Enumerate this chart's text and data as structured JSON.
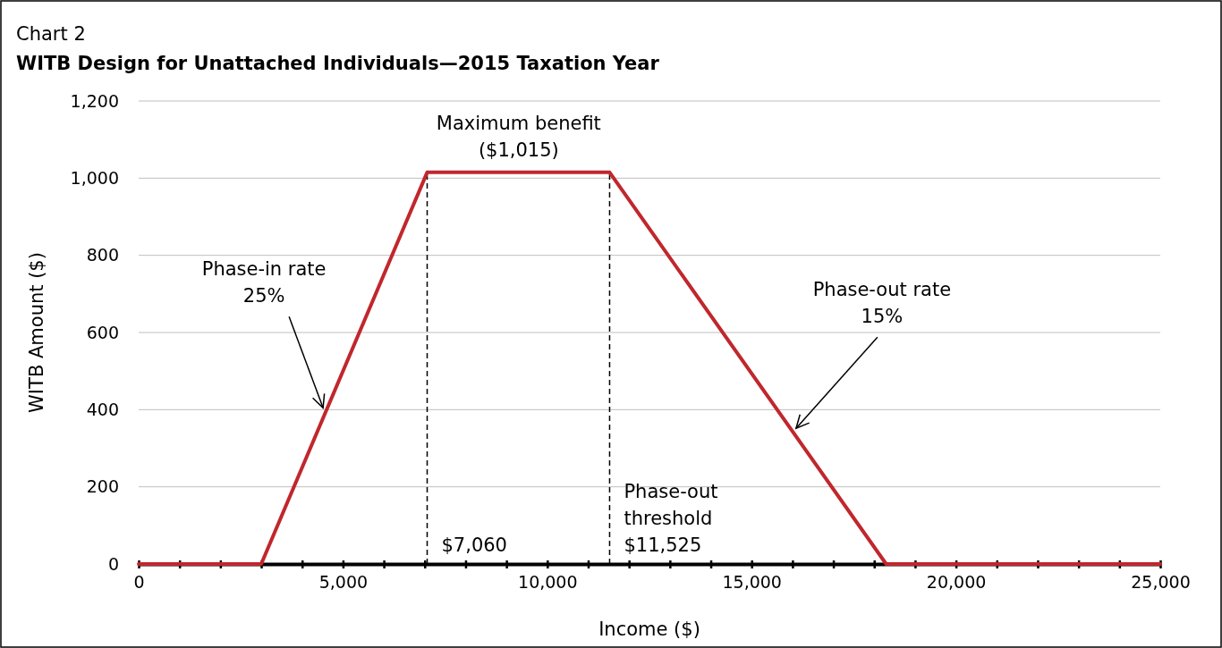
{
  "chart_data": {
    "type": "line",
    "subtitle": "Chart 2",
    "title": "WITB Design for Unattached Individuals—2015 Taxation Year",
    "xlabel": "Income ($)",
    "ylabel": "WITB Amount ($)",
    "x": [
      0,
      3000,
      7060,
      11525,
      18292,
      25000
    ],
    "series": [
      {
        "color": "#c0272d",
        "values": [
          0,
          0,
          1015,
          1015,
          0,
          0
        ]
      }
    ],
    "xlim": [
      0,
      25000
    ],
    "xticks": [
      0,
      {
        "value": 1000,
        "label": null
      },
      {
        "value": 2000,
        "label": null
      },
      {
        "value": 3000,
        "label": null
      },
      {
        "value": 4000,
        "label": null
      },
      {
        "value": 5000,
        "label": "5,000"
      },
      {
        "value": 6000,
        "label": null
      },
      {
        "value": 7000,
        "label": null
      },
      {
        "value": 8000,
        "label": null
      },
      {
        "value": 9000,
        "label": null
      },
      {
        "value": 10000,
        "label": "10,000"
      },
      {
        "value": 11000,
        "label": null
      },
      {
        "value": 12000,
        "label": null
      },
      {
        "value": 13000,
        "label": null
      },
      {
        "value": 14000,
        "label": null
      },
      {
        "value": 15000,
        "label": "15,000"
      },
      {
        "value": 16000,
        "label": null
      },
      {
        "value": 17000,
        "label": null
      },
      {
        "value": 18000,
        "label": null
      },
      {
        "value": 19000,
        "label": null
      },
      {
        "value": 20000,
        "label": "20,000"
      },
      {
        "value": 21000,
        "label": null
      },
      {
        "value": 22000,
        "label": null
      },
      {
        "value": 23000,
        "label": null
      },
      {
        "value": 24000,
        "label": null
      },
      {
        "value": 25000,
        "label": "25,000"
      }
    ],
    "ylim": [
      0,
      1200
    ],
    "yticks": [
      0,
      200,
      400,
      600,
      800,
      {
        "value": 1000,
        "label": "1,000"
      },
      {
        "value": 1200,
        "label": "1,200"
      }
    ],
    "grid": "y",
    "marker": "none",
    "line_style": "solid",
    "ref_lines": [
      {
        "axis": "x",
        "value": 7060,
        "label": "$7,060",
        "line_style": "dashed",
        "color": "#000000"
      },
      {
        "axis": "x",
        "value": 11525,
        "label": "Phase-out\nthreshold\n$11,525",
        "line_style": "dashed",
        "color": "#000000"
      }
    ],
    "annotations": [
      {
        "text": "Maximum benefit\n($1,015)",
        "x": 9300,
        "y": 1015
      },
      {
        "text": "Phase-in rate\n25%",
        "x": 4600,
        "y": 400
      },
      {
        "text": "Phase-out rate\n15%",
        "x": 16000,
        "y": 347
      }
    ]
  }
}
